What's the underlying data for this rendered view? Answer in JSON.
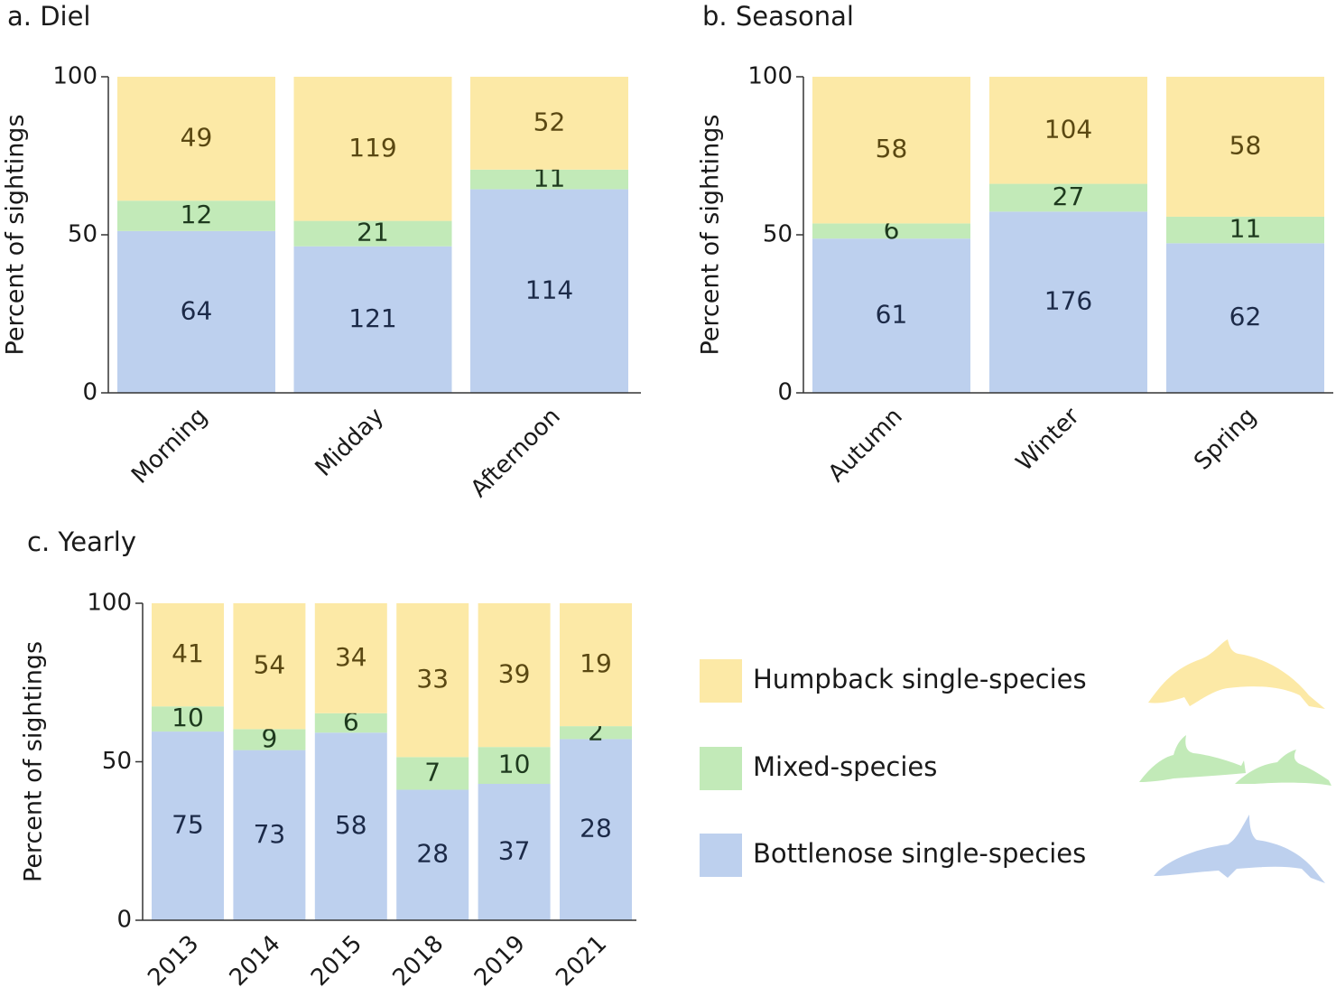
{
  "chart_data": [
    {
      "type": "bar",
      "normalize": true,
      "title": "a. Diel",
      "ylabel": "Percent of sightings",
      "categories": [
        "Morning",
        "Midday",
        "Afternoon"
      ],
      "series": [
        {
          "color": "#bdd0ee",
          "values": [
            64,
            121,
            114
          ]
        },
        {
          "color": "#c2eab8",
          "values": [
            12,
            21,
            11
          ]
        },
        {
          "color": "#fce9a6",
          "values": [
            49,
            119,
            52
          ]
        }
      ],
      "ylim": [
        0,
        100
      ],
      "yticks": [
        0,
        50,
        100
      ]
    },
    {
      "type": "bar",
      "normalize": true,
      "title": "b. Seasonal",
      "ylabel": "Percent of sightings",
      "categories": [
        "Autumn",
        "Winter",
        "Spring"
      ],
      "series": [
        {
          "color": "#bdd0ee",
          "values": [
            61,
            176,
            62
          ]
        },
        {
          "color": "#c2eab8",
          "values": [
            6,
            27,
            11
          ]
        },
        {
          "color": "#fce9a6",
          "values": [
            58,
            104,
            58
          ]
        }
      ],
      "ylim": [
        0,
        100
      ],
      "yticks": [
        0,
        50,
        100
      ]
    },
    {
      "type": "bar",
      "normalize": true,
      "title": "c. Yearly",
      "ylabel": "Percent of sightings",
      "categories": [
        "2013",
        "2014",
        "2015",
        "2018",
        "2019",
        "2021"
      ],
      "series": [
        {
          "name": "Bottlenose single-species",
          "color": "#bdd0ee",
          "values": [
            75,
            73,
            58,
            28,
            37,
            28
          ]
        },
        {
          "name": "Mixed-species",
          "color": "#c2eab8",
          "values": [
            10,
            9,
            6,
            7,
            10,
            2
          ]
        },
        {
          "name": "Humpback single-species",
          "color": "#fce9a6",
          "values": [
            41,
            54,
            34,
            33,
            39,
            19
          ]
        }
      ],
      "ylim": [
        0,
        100
      ],
      "yticks": [
        0,
        50,
        100
      ]
    }
  ]
}
